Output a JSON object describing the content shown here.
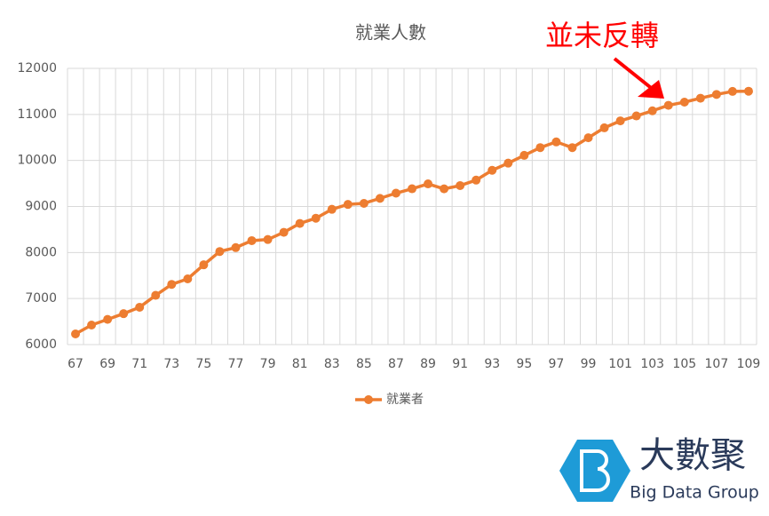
{
  "chart_data": {
    "type": "line",
    "title": "就業人數",
    "categories": [
      "67",
      null,
      "69",
      null,
      "71",
      null,
      "73",
      null,
      "75",
      null,
      "77",
      null,
      "79",
      null,
      "81",
      null,
      "83",
      null,
      "85",
      null,
      "87",
      null,
      "89",
      null,
      "91",
      null,
      "93",
      null,
      "95",
      null,
      "97",
      null,
      "99",
      null,
      "101",
      null,
      "103",
      null,
      "105",
      null,
      "107",
      null,
      "109"
    ],
    "series": [
      {
        "name": "就業者",
        "color": "#ed7d31",
        "values": [
          6231,
          6424,
          6547,
          6672,
          6811,
          7070,
          7308,
          7428,
          7733,
          8022,
          8107,
          8258,
          8283,
          8439,
          8632,
          8745,
          8939,
          9045,
          9068,
          9176,
          9289,
          9385,
          9491,
          9383,
          9454,
          9573,
          9786,
          9942,
          10111,
          10279,
          10403,
          10279,
          10493,
          10709,
          10860,
          10967,
          11079,
          11198,
          11267,
          11352,
          11434,
          11500,
          11504
        ]
      }
    ],
    "ylim": [
      6000,
      12000
    ],
    "yticks": [
      6000,
      7000,
      8000,
      9000,
      10000,
      11000,
      12000
    ],
    "grid": true,
    "legend": "bottom",
    "annotation": {
      "text": "並未反轉",
      "color": "#ff0000"
    }
  },
  "logo": {
    "name": "大數聚",
    "subtitle": "Big Data Group"
  }
}
